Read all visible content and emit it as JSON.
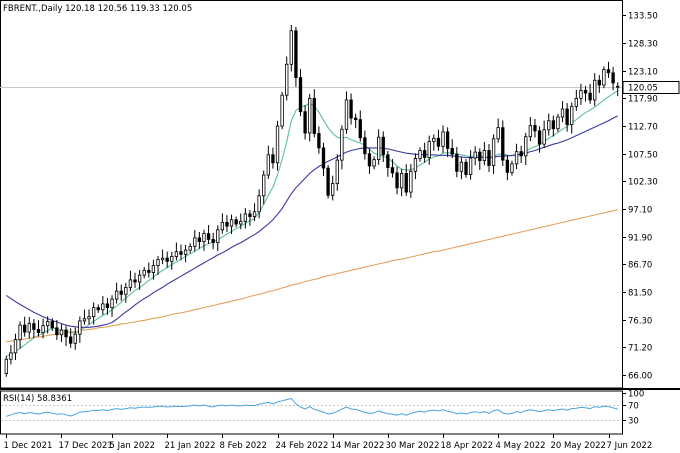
{
  "header": {
    "symbol_line": "FBRENT.,Daily  120.18 120.56 119.33 120.05",
    "rsi_label": "RSI(14) 58.8361"
  },
  "colors": {
    "candle": "#000000",
    "ma_fast": "#5fbf9f",
    "ma_mid": "#3a3aa0",
    "ma_slow": "#e3a15e",
    "rsi_line": "#4aa3df",
    "grid": "#c8c8c8",
    "price_tag_bg": "#ffffff"
  },
  "chart_data": [
    {
      "type": "candlestick",
      "title": "FBRENT.,Daily",
      "ylim": [
        63.5,
        136.0
      ],
      "y_ticks": [
        66.0,
        71.2,
        76.3,
        81.5,
        86.7,
        91.9,
        97.1,
        102.3,
        107.5,
        112.7,
        117.9,
        123.1,
        128.3,
        133.5
      ],
      "y_tick_labels": [
        "66.00",
        "71.20",
        "76.30",
        "81.50",
        "86.70",
        "91.90",
        "97.10",
        "102.30",
        "107.50",
        "112.70",
        "117.90",
        "123.10",
        "128.30",
        "133.50"
      ],
      "current_price": 120.05,
      "current_price_label": "120.05",
      "x_tick_labels": [
        "1 Dec 2021",
        "17 Dec 2021",
        "5 Jan 2022",
        "21 Jan 2022",
        "8 Feb 2022",
        "24 Feb 2022",
        "14 Mar 2022",
        "30 Mar 2022",
        "18 Apr 2022",
        "4 May 2022",
        "20 May 2022",
        "7 Jun 2022"
      ],
      "x_tick_index": [
        0,
        12,
        23,
        35,
        47,
        59,
        71,
        83,
        95,
        107,
        119,
        131
      ],
      "close": [
        68.9,
        70.1,
        72.6,
        75.3,
        74.0,
        75.6,
        74.5,
        73.9,
        75.2,
        76.0,
        74.8,
        73.5,
        74.4,
        73.1,
        71.9,
        73.6,
        76.1,
        76.5,
        76.9,
        78.6,
        78.2,
        79.3,
        78.6,
        80.2,
        81.7,
        81.1,
        82.4,
        83.8,
        83.4,
        84.7,
        85.6,
        85.2,
        86.5,
        87.6,
        87.9,
        87.3,
        88.2,
        89.1,
        88.6,
        89.4,
        90.1,
        91.7,
        91.0,
        92.5,
        91.4,
        90.8,
        93.2,
        94.6,
        93.9,
        95.1,
        94.3,
        94.8,
        96.2,
        95.7,
        96.6,
        99.6,
        103.5,
        107.3,
        105.8,
        112.7,
        118.5,
        124.3,
        130.6,
        121.8,
        115.4,
        111.4,
        117.9,
        111.3,
        108.6,
        104.8,
        99.7,
        101.9,
        106.3,
        112.1,
        117.6,
        114.2,
        113.9,
        110.5,
        107.5,
        105.2,
        106.4,
        110.6,
        107.3,
        104.9,
        103.9,
        101.1,
        103.8,
        100.3,
        104.2,
        106.6,
        108.1,
        106.8,
        109.8,
        110.4,
        108.9,
        111.6,
        108.5,
        107.4,
        104.2,
        105.9,
        103.6,
        106.7,
        107.8,
        106.2,
        108.1,
        105.3,
        110.3,
        112.4,
        106.3,
        104.0,
        105.6,
        107.9,
        107.1,
        110.7,
        112.8,
        111.8,
        109.3,
        112.0,
        113.7,
        112.2,
        114.4,
        115.9,
        113.0,
        116.4,
        117.9,
        119.4,
        118.9,
        117.6,
        121.3,
        120.4,
        123.3,
        122.7,
        120.8,
        120.05
      ],
      "open": [
        66.2,
        68.9,
        70.1,
        72.6,
        75.3,
        74.0,
        75.6,
        74.5,
        73.9,
        75.2,
        76.0,
        74.8,
        73.5,
        74.4,
        73.1,
        71.9,
        73.6,
        76.1,
        76.5,
        76.9,
        78.6,
        78.2,
        79.3,
        78.6,
        80.2,
        81.7,
        81.1,
        82.4,
        83.8,
        83.4,
        84.7,
        85.6,
        85.2,
        86.5,
        87.6,
        87.9,
        87.3,
        88.2,
        89.1,
        88.6,
        89.4,
        90.1,
        91.7,
        91.0,
        92.5,
        91.4,
        90.8,
        93.2,
        94.6,
        93.9,
        95.1,
        94.3,
        94.8,
        96.2,
        95.7,
        96.6,
        99.6,
        103.5,
        107.3,
        105.8,
        112.7,
        118.5,
        124.3,
        130.6,
        121.8,
        115.4,
        111.4,
        117.9,
        111.3,
        108.6,
        104.8,
        99.7,
        101.9,
        106.3,
        112.1,
        117.6,
        114.2,
        113.9,
        110.5,
        107.5,
        105.2,
        106.4,
        110.6,
        107.3,
        104.9,
        103.9,
        101.1,
        103.8,
        100.3,
        104.2,
        106.6,
        108.1,
        106.8,
        109.8,
        110.4,
        108.9,
        111.6,
        108.5,
        107.4,
        104.2,
        105.9,
        103.6,
        106.7,
        107.8,
        106.2,
        108.1,
        105.3,
        110.3,
        112.4,
        106.3,
        104.0,
        105.6,
        107.9,
        107.1,
        110.7,
        112.8,
        111.8,
        109.3,
        112.0,
        113.7,
        112.2,
        114.4,
        115.9,
        113.0,
        116.4,
        117.9,
        119.4,
        118.9,
        117.6,
        121.3,
        120.4,
        123.3,
        122.7,
        120.18
      ],
      "series": [
        {
          "name": "Moving Average",
          "values": [
            69.5,
            69.8,
            70.3,
            71.0,
            71.6,
            72.3,
            72.9,
            73.4,
            73.8,
            74.3,
            74.8,
            74.6,
            74.3,
            74.2,
            73.9,
            73.8,
            74.3,
            74.8,
            75.4,
            76.0,
            76.6,
            77.1,
            77.6,
            78.2,
            78.9,
            79.6,
            80.4,
            81.1,
            81.8,
            82.4,
            83.0,
            83.7,
            84.3,
            85.0,
            85.6,
            86.1,
            86.7,
            87.2,
            87.7,
            88.2,
            88.7,
            89.2,
            89.7,
            90.2,
            90.6,
            90.9,
            91.4,
            91.9,
            92.4,
            92.9,
            93.4,
            93.9,
            94.4,
            94.9,
            95.4,
            96.5,
            98.0,
            99.7,
            101.2,
            103.5,
            106.4,
            109.7,
            113.7,
            115.6,
            116.3,
            116.5,
            117.0,
            116.4,
            115.3,
            113.8,
            112.4,
            111.3,
            110.6,
            110.4,
            110.6,
            110.1,
            109.8,
            109.5,
            109.1,
            108.3,
            107.6,
            107.3,
            107.0,
            106.7,
            106.0,
            105.2,
            104.6,
            104.4,
            104.5,
            104.8,
            105.4,
            105.9,
            106.5,
            106.9,
            107.1,
            107.6,
            107.7,
            107.6,
            107.5,
            107.3,
            107.1,
            107.0,
            107.1,
            107.0,
            106.9,
            106.8,
            107.0,
            107.4,
            107.5,
            107.2,
            107.1,
            107.3,
            107.5,
            108.0,
            108.5,
            108.8,
            109.2,
            109.8,
            110.4,
            110.9,
            111.5,
            112.1,
            112.6,
            113.3,
            113.9,
            114.6,
            115.2,
            115.7,
            116.3,
            116.9,
            117.6,
            118.2,
            118.8,
            119.3
          ]
        },
        {
          "name": "Moving Average",
          "values": [
            80.9,
            80.3,
            79.7,
            79.2,
            78.7,
            78.2,
            77.7,
            77.3,
            76.9,
            76.5,
            76.2,
            75.9,
            75.6,
            75.3,
            75.1,
            75.0,
            74.9,
            74.9,
            74.9,
            75.0,
            75.1,
            75.3,
            75.5,
            75.8,
            76.4,
            77.1,
            77.8,
            78.4,
            79.1,
            79.7,
            80.3,
            80.8,
            81.4,
            81.9,
            82.4,
            83.0,
            83.5,
            84.0,
            84.5,
            85.0,
            85.5,
            86.0,
            86.5,
            87.0,
            87.5,
            88.0,
            88.5,
            88.9,
            89.4,
            89.9,
            90.4,
            90.8,
            91.3,
            91.8,
            92.3,
            92.9,
            93.6,
            94.3,
            95.1,
            96.1,
            97.2,
            98.6,
            100.0,
            101.1,
            102.0,
            102.9,
            103.8,
            104.5,
            105.1,
            105.6,
            106.1,
            106.5,
            106.9,
            107.4,
            107.8,
            108.1,
            108.3,
            108.5,
            108.6,
            108.6,
            108.6,
            108.6,
            108.5,
            108.4,
            108.2,
            108.0,
            107.8,
            107.6,
            107.5,
            107.4,
            107.4,
            107.3,
            107.3,
            107.3,
            107.2,
            107.2,
            107.2,
            107.1,
            107.0,
            106.9,
            106.8,
            106.8,
            106.8,
            106.8,
            106.8,
            106.8,
            106.9,
            107.0,
            107.1,
            107.1,
            107.2,
            107.3,
            107.4,
            107.6,
            107.9,
            108.1,
            108.4,
            108.7,
            109.0,
            109.3,
            109.5,
            109.8,
            110.1,
            110.5,
            110.9,
            111.3,
            111.7,
            112.1,
            112.5,
            112.9,
            113.3,
            113.7,
            114.2,
            114.6
          ]
        },
        {
          "name": "Moving Average",
          "values": [
            72.2,
            72.3,
            72.4,
            72.6,
            72.7,
            72.8,
            73.0,
            73.1,
            73.2,
            73.4,
            73.5,
            73.6,
            73.8,
            73.9,
            74.0,
            74.1,
            74.3,
            74.4,
            74.5,
            74.6,
            74.8,
            74.9,
            75.0,
            75.2,
            75.3,
            75.5,
            75.6,
            75.8,
            75.9,
            76.1,
            76.2,
            76.4,
            76.6,
            76.7,
            76.9,
            77.1,
            77.3,
            77.5,
            77.6,
            77.8,
            78.0,
            78.2,
            78.4,
            78.6,
            78.8,
            79.0,
            79.2,
            79.4,
            79.6,
            79.8,
            80.0,
            80.2,
            80.4,
            80.7,
            80.9,
            81.1,
            81.3,
            81.6,
            81.8,
            82.0,
            82.3,
            82.5,
            82.8,
            83.0,
            83.2,
            83.5,
            83.7,
            83.9,
            84.1,
            84.4,
            84.6,
            84.8,
            85.0,
            85.2,
            85.4,
            85.6,
            85.8,
            86.0,
            86.2,
            86.4,
            86.6,
            86.8,
            87.0,
            87.2,
            87.4,
            87.6,
            87.7,
            87.9,
            88.1,
            88.3,
            88.5,
            88.7,
            88.9,
            89.1,
            89.2,
            89.4,
            89.6,
            89.8,
            90.0,
            90.2,
            90.4,
            90.6,
            90.8,
            91.0,
            91.2,
            91.4,
            91.6,
            91.8,
            92.0,
            92.2,
            92.4,
            92.6,
            92.8,
            93.0,
            93.2,
            93.4,
            93.6,
            93.8,
            94.0,
            94.2,
            94.4,
            94.6,
            94.8,
            95.0,
            95.2,
            95.4,
            95.6,
            95.8,
            96.0,
            96.2,
            96.4,
            96.6,
            96.8,
            97.0
          ]
        }
      ]
    },
    {
      "type": "line",
      "title": "RSI(14) 58.8361",
      "ylim": [
        0,
        100
      ],
      "y_ticks": [
        30,
        70,
        100
      ],
      "y_tick_labels": [
        "30",
        "70",
        "100"
      ],
      "series": [
        {
          "name": "RSI(14)",
          "values": [
            40,
            44,
            48,
            50,
            47,
            50,
            48,
            46,
            49,
            51,
            48,
            45,
            47,
            44,
            41,
            45,
            51,
            52,
            53,
            56,
            55,
            57,
            55,
            58,
            60,
            58,
            60,
            62,
            61,
            63,
            64,
            63,
            64,
            66,
            66,
            64,
            65,
            66,
            65,
            66,
            67,
            69,
            67,
            69,
            66,
            64,
            68,
            69,
            67,
            69,
            67,
            67,
            69,
            68,
            68,
            71,
            74,
            76,
            72,
            77,
            80,
            83,
            86,
            72,
            64,
            59,
            65,
            58,
            55,
            51,
            46,
            48,
            53,
            59,
            64,
            59,
            58,
            54,
            50,
            48,
            49,
            54,
            50,
            47,
            46,
            43,
            47,
            43,
            48,
            51,
            53,
            51,
            55,
            56,
            54,
            57,
            53,
            51,
            47,
            49,
            46,
            50,
            52,
            49,
            52,
            48,
            55,
            57,
            49,
            46,
            48,
            52,
            50,
            55,
            57,
            55,
            52,
            55,
            57,
            55,
            57,
            59,
            56,
            60,
            61,
            63,
            62,
            60,
            65,
            63,
            66,
            65,
            62,
            58.8
          ]
        }
      ]
    }
  ]
}
